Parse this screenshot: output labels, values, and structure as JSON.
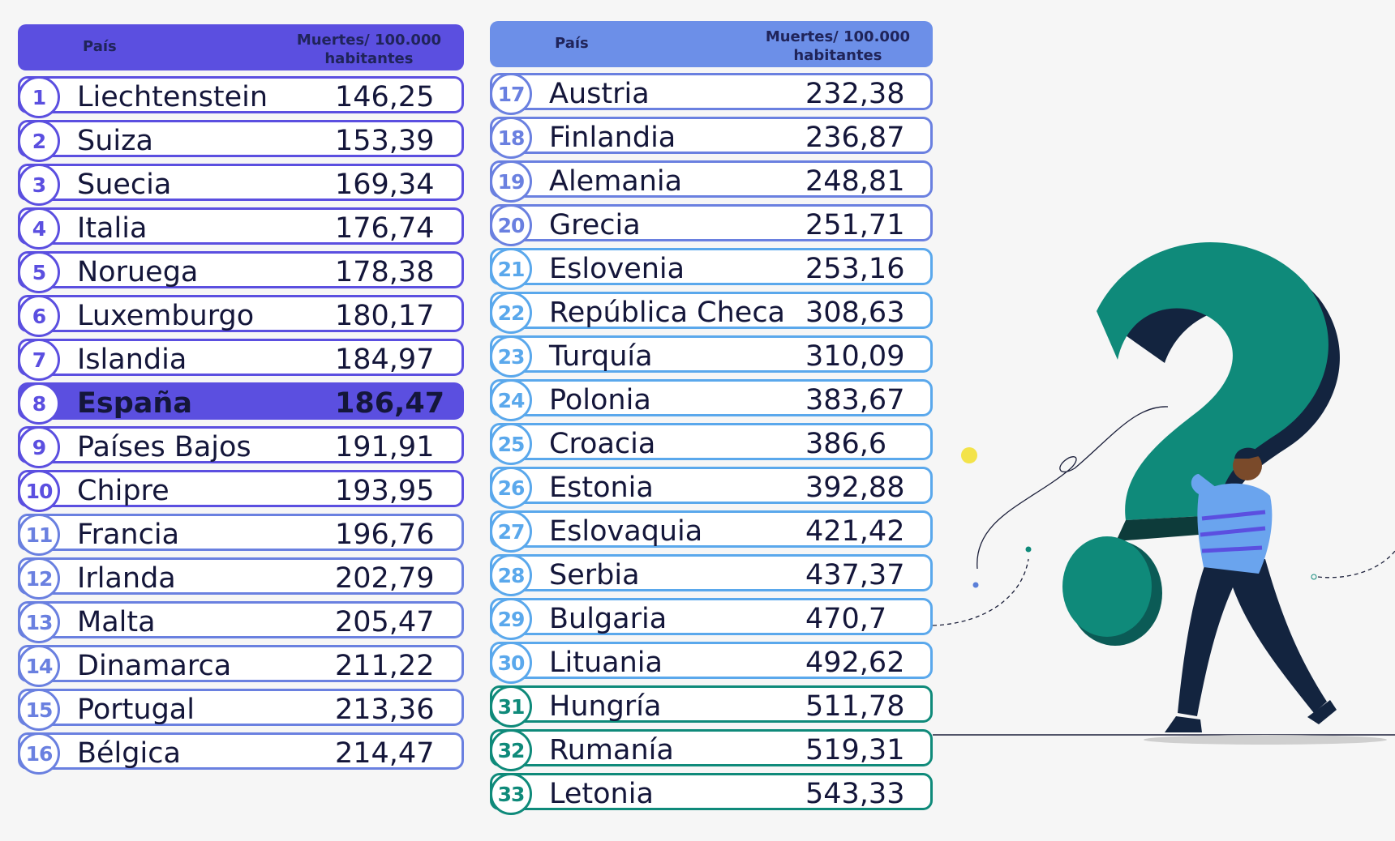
{
  "chart_data": {
    "type": "table",
    "columns": [
      "País",
      "Muertes/ 100.000 habitantes"
    ],
    "rows": [
      {
        "rank": "1",
        "country": "Liechtenstein",
        "value": "146,25",
        "color": "#5b4fe0"
      },
      {
        "rank": "2",
        "country": "Suiza",
        "value": "153,39",
        "color": "#5b4fe0"
      },
      {
        "rank": "3",
        "country": "Suecia",
        "value": "169,34",
        "color": "#5b4fe0"
      },
      {
        "rank": "4",
        "country": "Italia",
        "value": "176,74",
        "color": "#5b4fe0"
      },
      {
        "rank": "5",
        "country": "Noruega",
        "value": "178,38",
        "color": "#5b4fe0"
      },
      {
        "rank": "6",
        "country": "Luxemburgo",
        "value": "180,17",
        "color": "#5b4fe0"
      },
      {
        "rank": "7",
        "country": "Islandia",
        "value": "184,97",
        "color": "#5b4fe0"
      },
      {
        "rank": "8",
        "country": "España",
        "value": "186,47",
        "color": "#5b4fe0",
        "highlight": true
      },
      {
        "rank": "9",
        "country": "Países Bajos",
        "value": "191,91",
        "color": "#5b4fe0"
      },
      {
        "rank": "10",
        "country": "Chipre",
        "value": "193,95",
        "color": "#5b4fe0"
      },
      {
        "rank": "11",
        "country": "Francia",
        "value": "196,76",
        "color": "#6a80e0"
      },
      {
        "rank": "12",
        "country": "Irlanda",
        "value": "202,79",
        "color": "#6a80e0"
      },
      {
        "rank": "13",
        "country": "Malta",
        "value": "205,47",
        "color": "#6a80e0"
      },
      {
        "rank": "14",
        "country": "Dinamarca",
        "value": "211,22",
        "color": "#6a80e0"
      },
      {
        "rank": "15",
        "country": "Portugal",
        "value": "213,36",
        "color": "#6a80e0"
      },
      {
        "rank": "16",
        "country": "Bélgica",
        "value": "214,47",
        "color": "#6a80e0"
      },
      {
        "rank": "17",
        "country": "Austria",
        "value": "232,38",
        "color": "#6a80e0"
      },
      {
        "rank": "18",
        "country": "Finlandia",
        "value": "236,87",
        "color": "#6a80e0"
      },
      {
        "rank": "19",
        "country": "Alemania",
        "value": "248,81",
        "color": "#6a80e0"
      },
      {
        "rank": "20",
        "country": "Grecia",
        "value": "251,71",
        "color": "#6a80e0"
      },
      {
        "rank": "21",
        "country": "Eslovenia",
        "value": "253,16",
        "color": "#5aa8ec"
      },
      {
        "rank": "22",
        "country": "República Checa",
        "value": "308,63",
        "color": "#5aa8ec"
      },
      {
        "rank": "23",
        "country": "Turquía",
        "value": "310,09",
        "color": "#5aa8ec"
      },
      {
        "rank": "24",
        "country": "Polonia",
        "value": "383,67",
        "color": "#5aa8ec"
      },
      {
        "rank": "25",
        "country": "Croacia",
        "value": "386,6",
        "color": "#5aa8ec"
      },
      {
        "rank": "26",
        "country": "Estonia",
        "value": "392,88",
        "color": "#5aa8ec"
      },
      {
        "rank": "27",
        "country": "Eslovaquia",
        "value": "421,42",
        "color": "#5aa8ec"
      },
      {
        "rank": "28",
        "country": "Serbia",
        "value": "437,37",
        "color": "#5aa8ec"
      },
      {
        "rank": "29",
        "country": "Bulgaria",
        "value": "470,7",
        "color": "#5aa8ec"
      },
      {
        "rank": "30",
        "country": "Lituania",
        "value": "492,62",
        "color": "#5aa8ec"
      },
      {
        "rank": "31",
        "country": "Hungría",
        "value": "511,78",
        "color": "#0f8a7a"
      },
      {
        "rank": "32",
        "country": "Rumanía",
        "value": "519,31",
        "color": "#0f8a7a"
      },
      {
        "rank": "33",
        "country": "Letonia",
        "value": "543,33",
        "color": "#0f8a7a"
      }
    ]
  },
  "header": {
    "col_country": "País",
    "col_value_line1": "Muertes/ 100.000",
    "col_value_line2": "habitantes"
  }
}
